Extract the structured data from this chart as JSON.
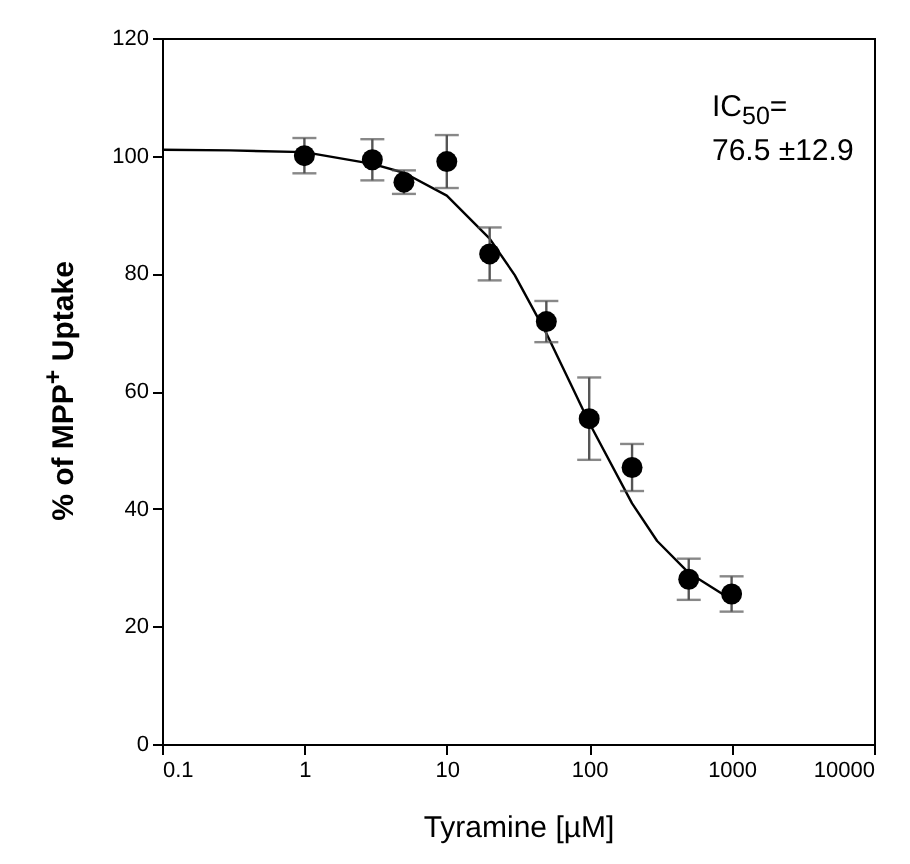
{
  "chart_data": {
    "type": "scatter",
    "xlabel": "Tyramine [µM]",
    "ylabel": "% of MPP$^{+}$ Uptake",
    "annotations": [
      "IC$_{50}$=",
      "76.5 ±12.9"
    ],
    "log": "x",
    "xlim": [
      0.1,
      10000
    ],
    "xticks": [
      0.1,
      1,
      10,
      100,
      1000,
      10000
    ],
    "ylim": [
      0,
      120
    ],
    "yticks": [
      0,
      20,
      40,
      60,
      80,
      100,
      120
    ],
    "grid": false,
    "marker": "circle",
    "series": [
      {
        "type": "line",
        "color": "#000000",
        "line_style": "solid",
        "marker": "none",
        "x": [
          0.1,
          0.3,
          1,
          3,
          5,
          10,
          20,
          30,
          50,
          76.5,
          100,
          200,
          300,
          500,
          1000
        ],
        "values": [
          101,
          100.9,
          100.6,
          98.6,
          97.1,
          93.2,
          85.9,
          79.7,
          69.8,
          60.5,
          54.6,
          40.9,
          34.5,
          29.1,
          24.5
        ]
      },
      {
        "color": "#000000",
        "x": [
          1,
          3,
          5,
          10,
          20,
          50,
          100,
          200,
          500,
          1000
        ],
        "values": [
          100,
          99.3,
          95.5,
          99,
          83.3,
          71.8,
          55.3,
          47,
          28,
          25.5
        ],
        "errors": [
          3,
          3.5,
          2,
          4.5,
          4.5,
          3.5,
          7,
          4,
          3.5,
          3
        ]
      }
    ]
  }
}
